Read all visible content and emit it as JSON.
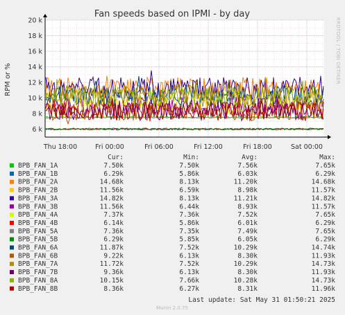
{
  "chart_data": {
    "type": "line",
    "title": "Fan speeds based on IPMI - by day",
    "ylabel": "RPM or %",
    "side_label": "RRDTOOL / TOBI OETIKER",
    "ylim": [
      5000,
      20000
    ],
    "y_ticks": [
      {
        "value": 6000,
        "label": "6 k"
      },
      {
        "value": 8000,
        "label": "8 k"
      },
      {
        "value": 10000,
        "label": "10 k"
      },
      {
        "value": 12000,
        "label": "12 k"
      },
      {
        "value": 14000,
        "label": "14 k"
      },
      {
        "value": 16000,
        "label": "16 k"
      },
      {
        "value": 18000,
        "label": "18 k"
      },
      {
        "value": 20000,
        "label": "20 k"
      }
    ],
    "x_ticks": [
      "Thu 18:00",
      "Fri 00:00",
      "Fri 06:00",
      "Fri 12:00",
      "Fri 18:00",
      "Sat 00:00"
    ],
    "legend_headers": [
      "Cur:",
      "Min:",
      "Avg:",
      "Max:"
    ],
    "series": [
      {
        "name": "BPB_FAN_1A",
        "color": "#00cc00",
        "cur": "7.50k",
        "min": "7.50k",
        "avg": "7.56k",
        "max": "7.65k",
        "level": 7560,
        "spread": 70
      },
      {
        "name": "BPB_FAN_1B",
        "color": "#0066b3",
        "cur": "6.29k",
        "min": "5.86k",
        "avg": "6.03k",
        "max": "6.29k",
        "level": 6030,
        "spread": 110
      },
      {
        "name": "BPB_FAN_2A",
        "color": "#ff8000",
        "cur": "14.68k",
        "min": "8.13k",
        "avg": "11.20k",
        "max": "14.68k",
        "level": 11200,
        "spread": 1500
      },
      {
        "name": "BPB_FAN_2B",
        "color": "#ffcc00",
        "cur": "11.56k",
        "min": "6.59k",
        "avg": "8.98k",
        "max": "11.57k",
        "level": 8980,
        "spread": 1200
      },
      {
        "name": "BPB_FAN_3A",
        "color": "#330099",
        "cur": "14.82k",
        "min": "8.13k",
        "avg": "11.21k",
        "max": "14.82k",
        "level": 11210,
        "spread": 1500
      },
      {
        "name": "BPB_FAN_3B",
        "color": "#990099",
        "cur": "11.56k",
        "min": "6.44k",
        "avg": "8.93k",
        "max": "11.57k",
        "level": 8930,
        "spread": 1200
      },
      {
        "name": "BPB_FAN_4A",
        "color": "#ccff00",
        "cur": "7.37k",
        "min": "7.36k",
        "avg": "7.52k",
        "max": "7.65k",
        "level": 7520,
        "spread": 70
      },
      {
        "name": "BPB_FAN_4B",
        "color": "#ff0000",
        "cur": "6.14k",
        "min": "5.86k",
        "avg": "6.01k",
        "max": "6.29k",
        "level": 6010,
        "spread": 110
      },
      {
        "name": "BPB_FAN_5A",
        "color": "#808080",
        "cur": "7.36k",
        "min": "7.35k",
        "avg": "7.49k",
        "max": "7.65k",
        "level": 7490,
        "spread": 70
      },
      {
        "name": "BPB_FAN_5B",
        "color": "#008f00",
        "cur": "6.29k",
        "min": "5.85k",
        "avg": "6.05k",
        "max": "6.29k",
        "level": 6050,
        "spread": 110
      },
      {
        "name": "BPB_FAN_6A",
        "color": "#00487d",
        "cur": "11.87k",
        "min": "7.52k",
        "avg": "10.29k",
        "max": "14.74k",
        "level": 10290,
        "spread": 1400
      },
      {
        "name": "BPB_FAN_6B",
        "color": "#b35a00",
        "cur": "9.22k",
        "min": "6.13k",
        "avg": "8.30k",
        "max": "11.93k",
        "level": 8300,
        "spread": 1200
      },
      {
        "name": "BPB_FAN_7A",
        "color": "#b38f00",
        "cur": "11.72k",
        "min": "7.52k",
        "avg": "10.29k",
        "max": "14.73k",
        "level": 10290,
        "spread": 1400
      },
      {
        "name": "BPB_FAN_7B",
        "color": "#6b006b",
        "cur": "9.36k",
        "min": "6.13k",
        "avg": "8.30k",
        "max": "11.93k",
        "level": 8300,
        "spread": 1200
      },
      {
        "name": "BPB_FAN_8A",
        "color": "#8fb300",
        "cur": "10.15k",
        "min": "7.66k",
        "avg": "10.28k",
        "max": "14.73k",
        "level": 10280,
        "spread": 1400
      },
      {
        "name": "BPB_FAN_8B",
        "color": "#b30000",
        "cur": "8.36k",
        "min": "6.27k",
        "avg": "8.31k",
        "max": "11.96k",
        "level": 8310,
        "spread": 1200
      }
    ],
    "last_update": "Last update: Sat May 31 01:50:21 2025",
    "footer": "Munin 2.0.75"
  }
}
